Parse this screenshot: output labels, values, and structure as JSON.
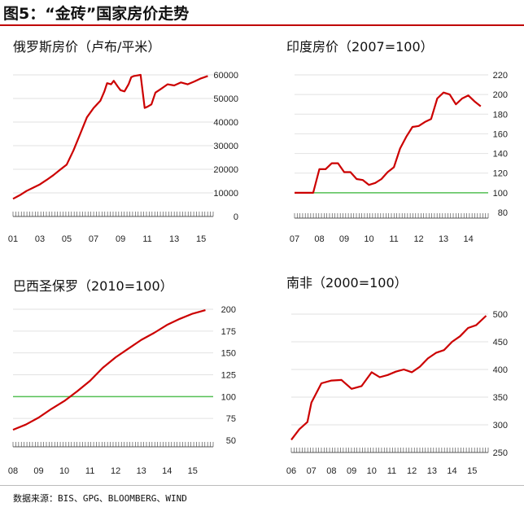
{
  "figure": {
    "title": "图5：“金砖”国家房价走势",
    "source": "数据来源：BIS、GPG、BLOOMBERG、WIND"
  },
  "colors": {
    "series": "#cc0000",
    "reference": "#55c055",
    "grid": "#e2e2e2",
    "axis": "#555555"
  },
  "chart_data": [
    {
      "type": "line",
      "title": "俄罗斯房价（卢布/平米）",
      "xlabel": "",
      "ylabel": "",
      "ylim": [
        0,
        60000
      ],
      "yticks": [
        0,
        10000,
        20000,
        30000,
        40000,
        50000,
        60000
      ],
      "xlim": [
        2001,
        2015.9
      ],
      "xtick_labels": [
        "01",
        "03",
        "05",
        "07",
        "09",
        "11",
        "13",
        "15"
      ],
      "xtick_values": [
        2001,
        2003,
        2005,
        2007,
        2009,
        2011,
        2013,
        2015
      ],
      "reference_line": null,
      "series": [
        {
          "name": "俄罗斯",
          "x": [
            2001,
            2001.5,
            2002,
            2002.5,
            2003,
            2003.5,
            2004,
            2004.5,
            2005,
            2005.5,
            2006,
            2006.5,
            2007,
            2007.5,
            2007.8,
            2008,
            2008.3,
            2008.5,
            2008.8,
            2009,
            2009.3,
            2009.6,
            2009.8,
            2010,
            2010.5,
            2010.8,
            2011,
            2011.3,
            2011.6,
            2012,
            2012.5,
            2013,
            2013.5,
            2014,
            2014.5,
            2015,
            2015.5
          ],
          "y": [
            7500,
            9000,
            10800,
            12200,
            13600,
            15500,
            17500,
            19800,
            22000,
            28000,
            35000,
            42000,
            46000,
            49000,
            53000,
            56500,
            56000,
            57500,
            55000,
            53500,
            53000,
            56000,
            59000,
            59500,
            60000,
            46000,
            46500,
            47500,
            52500,
            54000,
            56000,
            55500,
            56800,
            56000,
            57200,
            58500,
            59500
          ]
        }
      ]
    },
    {
      "type": "line",
      "title": "印度房价（2007=100）",
      "xlabel": "",
      "ylabel": "",
      "ylim": [
        80,
        220
      ],
      "yticks": [
        80,
        100,
        120,
        140,
        160,
        180,
        200,
        220
      ],
      "xlim": [
        2007,
        2014.8
      ],
      "xtick_labels": [
        "07",
        "08",
        "09",
        "10",
        "11",
        "12",
        "13",
        "14"
      ],
      "xtick_values": [
        2007,
        2008,
        2009,
        2010,
        2011,
        2012,
        2013,
        2014
      ],
      "reference_line": 100,
      "series": [
        {
          "name": "印度",
          "x": [
            2007,
            2007.75,
            2008,
            2008.25,
            2008.5,
            2008.75,
            2009,
            2009.25,
            2009.5,
            2009.75,
            2010,
            2010.25,
            2010.5,
            2010.75,
            2011,
            2011.25,
            2011.5,
            2011.75,
            2012,
            2012.25,
            2012.5,
            2012.75,
            2013,
            2013.25,
            2013.5,
            2013.75,
            2014,
            2014.25,
            2014.5
          ],
          "y": [
            100,
            100,
            124,
            124,
            130,
            130,
            121,
            121,
            114,
            113,
            108,
            110,
            114,
            121,
            126,
            145,
            157,
            167,
            168,
            172,
            175,
            196,
            202,
            200,
            190,
            196,
            199,
            193,
            188
          ]
        }
      ]
    },
    {
      "type": "line",
      "title": "巴西圣保罗（2010=100）",
      "xlabel": "",
      "ylabel": "",
      "ylim": [
        50,
        200
      ],
      "yticks": [
        50,
        75,
        100,
        125,
        150,
        175,
        200
      ],
      "xlim": [
        2008,
        2015.8
      ],
      "xtick_labels": [
        "08",
        "09",
        "10",
        "11",
        "12",
        "13",
        "14",
        "15"
      ],
      "xtick_values": [
        2008,
        2009,
        2010,
        2011,
        2012,
        2013,
        2014,
        2015
      ],
      "reference_line": 100,
      "series": [
        {
          "name": "圣保罗",
          "x": [
            2008,
            2008.5,
            2009,
            2009.5,
            2010,
            2010.5,
            2011,
            2011.5,
            2012,
            2012.5,
            2013,
            2013.5,
            2014,
            2014.5,
            2015,
            2015.5
          ],
          "y": [
            62,
            68,
            76,
            86,
            95,
            106,
            118,
            133,
            145,
            155,
            165,
            173,
            182,
            189,
            195,
            199
          ]
        }
      ]
    },
    {
      "type": "line",
      "title": "南非（2000=100）",
      "xlabel": "",
      "ylabel": "",
      "ylim": [
        250,
        500
      ],
      "yticks": [
        250,
        300,
        350,
        400,
        450,
        500
      ],
      "xlim": [
        2006,
        2015.8
      ],
      "xtick_labels": [
        "06",
        "07",
        "08",
        "09",
        "10",
        "11",
        "12",
        "13",
        "14",
        "15"
      ],
      "xtick_values": [
        2006,
        2007,
        2008,
        2009,
        2010,
        2011,
        2012,
        2013,
        2014,
        2015
      ],
      "reference_line": null,
      "series": [
        {
          "name": "南非",
          "x": [
            2006,
            2006.4,
            2006.8,
            2007,
            2007.5,
            2008,
            2008.5,
            2009,
            2009.5,
            2010,
            2010.4,
            2010.8,
            2011.2,
            2011.6,
            2012,
            2012.4,
            2012.8,
            2013.2,
            2013.6,
            2014,
            2014.4,
            2014.8,
            2015.2,
            2015.7
          ],
          "y": [
            273,
            292,
            305,
            340,
            375,
            380,
            381,
            365,
            370,
            395,
            386,
            390,
            396,
            400,
            395,
            405,
            420,
            430,
            435,
            450,
            460,
            475,
            480,
            497
          ]
        }
      ]
    }
  ]
}
